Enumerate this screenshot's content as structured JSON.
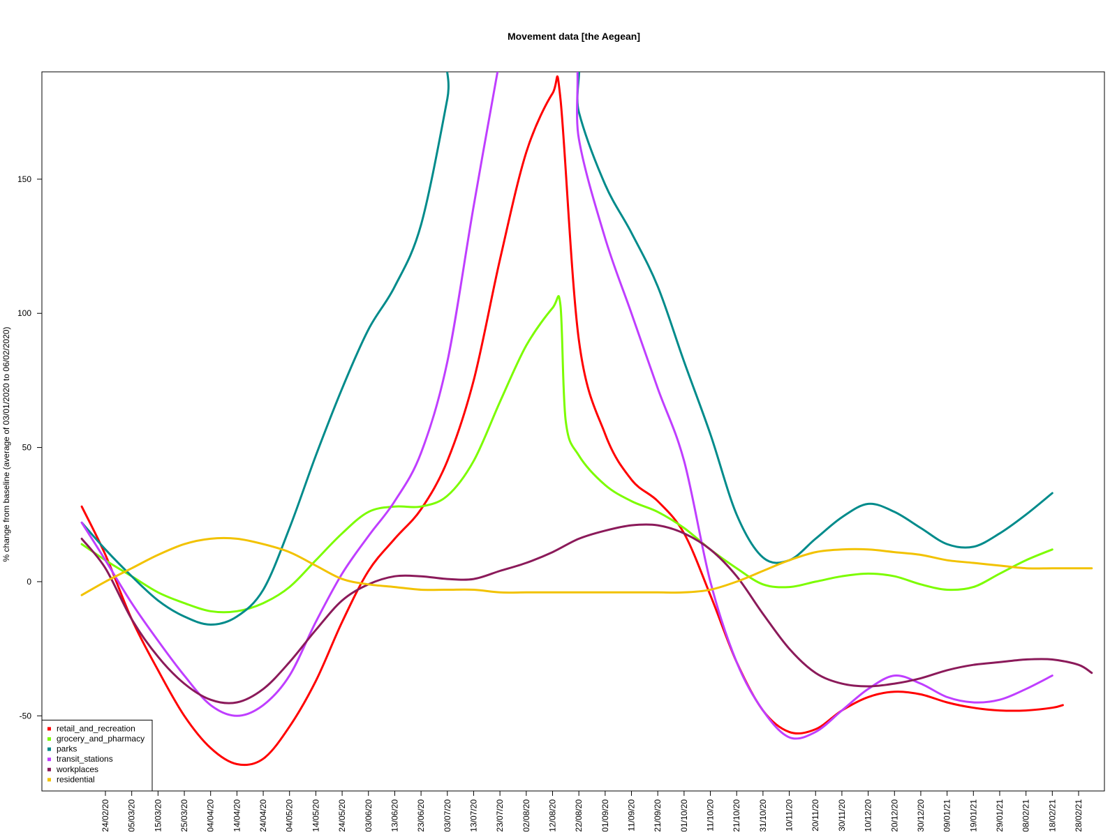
{
  "chart_data": {
    "type": "line",
    "title": "Movement data [the Aegean]",
    "xlabel": "",
    "ylabel": "% change from baseline (average of 03/01/2020 to 06/02/2020)",
    "ylim": [
      -78,
      190
    ],
    "yticks": [
      -50,
      0,
      50,
      100,
      150
    ],
    "x_ticks": [
      "24/02/20",
      "05/03/20",
      "15/03/20",
      "25/03/20",
      "04/04/20",
      "14/04/20",
      "24/04/20",
      "04/05/20",
      "14/05/20",
      "24/05/20",
      "03/06/20",
      "13/06/20",
      "23/06/20",
      "03/07/20",
      "13/07/20",
      "23/07/20",
      "02/08/20",
      "12/08/20",
      "22/08/20",
      "01/09/20",
      "11/09/20",
      "21/09/20",
      "01/10/20",
      "11/10/20",
      "21/10/20",
      "31/10/20",
      "10/11/20",
      "20/11/20",
      "30/11/20",
      "10/12/20",
      "20/12/20",
      "30/12/20",
      "09/01/21",
      "19/01/21",
      "29/01/21",
      "08/02/21",
      "18/02/21",
      "28/02/21"
    ],
    "legend_position": "bottom-left",
    "series": [
      {
        "name": "retail_and_recreation",
        "color": "#ff0000",
        "x": [
          "15/02/20",
          "24/02/20",
          "05/03/20",
          "15/03/20",
          "25/03/20",
          "04/04/20",
          "14/04/20",
          "24/04/20",
          "04/05/20",
          "14/05/20",
          "24/05/20",
          "03/06/20",
          "13/06/20",
          "23/06/20",
          "03/07/20",
          "13/07/20",
          "23/07/20",
          "02/08/20",
          "12/08/20",
          "15/08/20",
          "22/08/20",
          "01/09/20",
          "11/09/20",
          "21/09/20",
          "01/10/20",
          "11/10/20",
          "21/10/20",
          "31/10/20",
          "10/11/20",
          "20/11/20",
          "30/11/20",
          "10/12/20",
          "20/12/20",
          "30/12/20",
          "09/01/21",
          "19/01/21",
          "29/01/21",
          "08/02/21",
          "18/02/21",
          "22/02/21"
        ],
        "y": [
          28,
          10,
          -14,
          -33,
          -50,
          -62,
          -68,
          -66,
          -54,
          -37,
          -15,
          4,
          16,
          27,
          45,
          75,
          120,
          160,
          182,
          180,
          90,
          55,
          38,
          30,
          18,
          -5,
          -30,
          -48,
          -56,
          -55,
          -48,
          -43,
          -41,
          -42,
          -45,
          -47,
          -48,
          -48,
          -47,
          -46
        ]
      },
      {
        "name": "grocery_and_pharmacy",
        "color": "#7cfc00",
        "x": [
          "15/02/20",
          "24/02/20",
          "05/03/20",
          "15/03/20",
          "25/03/20",
          "04/04/20",
          "14/04/20",
          "24/04/20",
          "04/05/20",
          "14/05/20",
          "24/05/20",
          "03/06/20",
          "13/06/20",
          "23/06/20",
          "03/07/20",
          "13/07/20",
          "23/07/20",
          "02/08/20",
          "12/08/20",
          "15/08/20",
          "17/08/20",
          "22/08/20",
          "01/09/20",
          "11/09/20",
          "21/09/20",
          "01/10/20",
          "11/10/20",
          "21/10/20",
          "31/10/20",
          "10/11/20",
          "20/11/20",
          "30/11/20",
          "10/12/20",
          "20/12/20",
          "30/12/20",
          "09/01/21",
          "19/01/21",
          "29/01/21",
          "08/02/21",
          "18/02/21"
        ],
        "y": [
          14,
          8,
          2,
          -4,
          -8,
          -11,
          -11,
          -8,
          -2,
          8,
          18,
          26,
          28,
          28,
          32,
          45,
          67,
          88,
          102,
          103,
          60,
          47,
          36,
          30,
          26,
          20,
          12,
          5,
          -1,
          -2,
          0,
          2,
          3,
          2,
          -1,
          -3,
          -2,
          3,
          8,
          12
        ]
      },
      {
        "name": "parks",
        "color": "#008b8b",
        "x": [
          "15/02/20",
          "24/02/20",
          "05/03/20",
          "15/03/20",
          "25/03/20",
          "04/04/20",
          "14/04/20",
          "24/04/20",
          "04/05/20",
          "14/05/20",
          "24/05/20",
          "03/06/20",
          "13/06/20",
          "23/06/20",
          "03/07/20",
          "06/07/20",
          "18/08/20",
          "22/08/20",
          "01/09/20",
          "11/09/20",
          "21/09/20",
          "01/10/20",
          "11/10/20",
          "21/10/20",
          "31/10/20",
          "10/11/20",
          "20/11/20",
          "30/11/20",
          "10/12/20",
          "20/12/20",
          "30/12/20",
          "09/01/21",
          "19/01/21",
          "29/01/21",
          "08/02/21",
          "18/02/21"
        ],
        "y": [
          22,
          12,
          2,
          -7,
          -13,
          -16,
          -13,
          -3,
          20,
          47,
          72,
          94,
          110,
          133,
          180,
          200,
          200,
          175,
          148,
          130,
          110,
          82,
          55,
          25,
          9,
          8,
          16,
          24,
          29,
          26,
          20,
          14,
          13,
          18,
          25,
          33
        ]
      },
      {
        "name": "transit_stations",
        "color": "#bf3eff",
        "x": [
          "15/02/20",
          "24/02/20",
          "05/03/20",
          "15/03/20",
          "25/03/20",
          "04/04/20",
          "14/04/20",
          "24/04/20",
          "04/05/20",
          "14/05/20",
          "24/05/20",
          "03/06/20",
          "13/06/20",
          "23/06/20",
          "03/07/20",
          "13/07/20",
          "23/07/20",
          "24/07/20",
          "19/08/20",
          "22/08/20",
          "01/09/20",
          "11/09/20",
          "21/09/20",
          "01/10/20",
          "11/10/20",
          "21/10/20",
          "31/10/20",
          "10/11/20",
          "20/11/20",
          "30/11/20",
          "10/12/20",
          "20/12/20",
          "30/12/20",
          "09/01/21",
          "19/01/21",
          "29/01/21",
          "08/02/21",
          "18/02/21"
        ],
        "y": [
          22,
          8,
          -8,
          -22,
          -35,
          -46,
          -50,
          -46,
          -35,
          -15,
          3,
          17,
          30,
          48,
          82,
          140,
          195,
          200,
          200,
          165,
          128,
          100,
          72,
          45,
          0,
          -30,
          -48,
          -58,
          -56,
          -48,
          -40,
          -35,
          -38,
          -43,
          -45,
          -44,
          -40,
          -35
        ]
      },
      {
        "name": "workplaces",
        "color": "#8b1a5a",
        "x": [
          "15/02/20",
          "24/02/20",
          "05/03/20",
          "15/03/20",
          "25/03/20",
          "04/04/20",
          "14/04/20",
          "24/04/20",
          "04/05/20",
          "14/05/20",
          "24/05/20",
          "03/06/20",
          "13/06/20",
          "23/06/20",
          "03/07/20",
          "13/07/20",
          "23/07/20",
          "02/08/20",
          "12/08/20",
          "22/08/20",
          "01/09/20",
          "11/09/20",
          "21/09/20",
          "01/10/20",
          "11/10/20",
          "21/10/20",
          "31/10/20",
          "10/11/20",
          "20/11/20",
          "30/11/20",
          "10/12/20",
          "20/12/20",
          "30/12/20",
          "09/01/21",
          "19/01/21",
          "29/01/21",
          "08/02/21",
          "18/02/21",
          "28/02/21",
          "05/03/21"
        ],
        "y": [
          16,
          5,
          -14,
          -28,
          -38,
          -44,
          -45,
          -40,
          -30,
          -18,
          -7,
          -1,
          2,
          2,
          1,
          1,
          4,
          7,
          11,
          16,
          19,
          21,
          21,
          18,
          12,
          2,
          -12,
          -25,
          -34,
          -38,
          -39,
          -38,
          -36,
          -33,
          -31,
          -30,
          -29,
          -29,
          -31,
          -34
        ]
      },
      {
        "name": "residential",
        "color": "#f2c200",
        "x": [
          "15/02/20",
          "24/02/20",
          "05/03/20",
          "15/03/20",
          "25/03/20",
          "04/04/20",
          "14/04/20",
          "24/04/20",
          "04/05/20",
          "14/05/20",
          "24/05/20",
          "03/06/20",
          "13/06/20",
          "23/06/20",
          "03/07/20",
          "13/07/20",
          "23/07/20",
          "02/08/20",
          "12/08/20",
          "22/08/20",
          "01/09/20",
          "11/09/20",
          "21/09/20",
          "01/10/20",
          "11/10/20",
          "21/10/20",
          "31/10/20",
          "10/11/20",
          "20/11/20",
          "30/11/20",
          "10/12/20",
          "20/12/20",
          "30/12/20",
          "09/01/21",
          "19/01/21",
          "29/01/21",
          "08/02/21",
          "18/02/21",
          "28/02/21",
          "05/03/21"
        ],
        "y": [
          -5,
          0,
          5,
          10,
          14,
          16,
          16,
          14,
          11,
          6,
          1,
          -1,
          -2,
          -3,
          -3,
          -3,
          -4,
          -4,
          -4,
          -4,
          -4,
          -4,
          -4,
          -4,
          -3,
          0,
          4,
          8,
          11,
          12,
          12,
          11,
          10,
          8,
          7,
          6,
          5,
          5,
          5,
          5
        ]
      }
    ]
  }
}
